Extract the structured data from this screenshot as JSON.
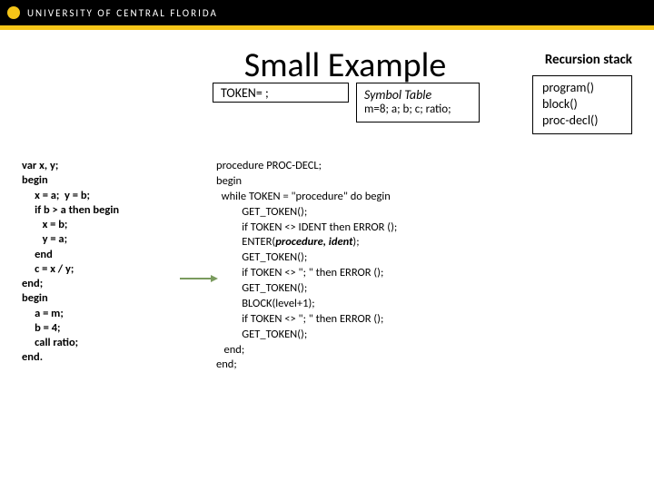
{
  "header": {
    "university": "UNIVERSITY OF CENTRAL FLORIDA",
    "logo_color": "#f5c518",
    "bar_color": "#000000"
  },
  "title": "Small Example",
  "recursion_label": "Recursion stack",
  "token_box": "TOKEN= ;",
  "symbol_table": {
    "title": "Symbol Table",
    "content": "m=8; a; b; c; ratio;"
  },
  "stack": {
    "items": [
      "program()",
      "block()",
      "proc-decl()"
    ]
  },
  "source_code": "var x, y;\nbegin\n     x = a;  y = b;\n     if b > a then begin\n        x = b;\n        y = a;\n     end\n     c = x / y;\nend;\nbegin\n     a = m;\n     b = 4;\n     call ratio;\nend.",
  "procedure_code": {
    "line1": "procedure PROC-DECL;",
    "line2": "begin",
    "line3": "  while TOKEN = \"procedure\" do begin",
    "line4": "          GET_TOKEN();",
    "line5": "          if TOKEN <> IDENT then ERROR ();",
    "line6_pre": "          ENTER(",
    "line6_args": "procedure, ident",
    "line6_post": ");",
    "line7": "          GET_TOKEN();",
    "line8": "          if TOKEN <> \"; \" then ERROR ();",
    "line9": "          GET_TOKEN();",
    "line10": "          BLOCK(level+1);",
    "line11": "          if TOKEN <> \"; \" then ERROR ();",
    "line12": "          GET_TOKEN();",
    "line13": "   end;",
    "line14": "end;"
  },
  "arrow": {
    "color": "#7a9b5e",
    "points_to_line": 9
  }
}
